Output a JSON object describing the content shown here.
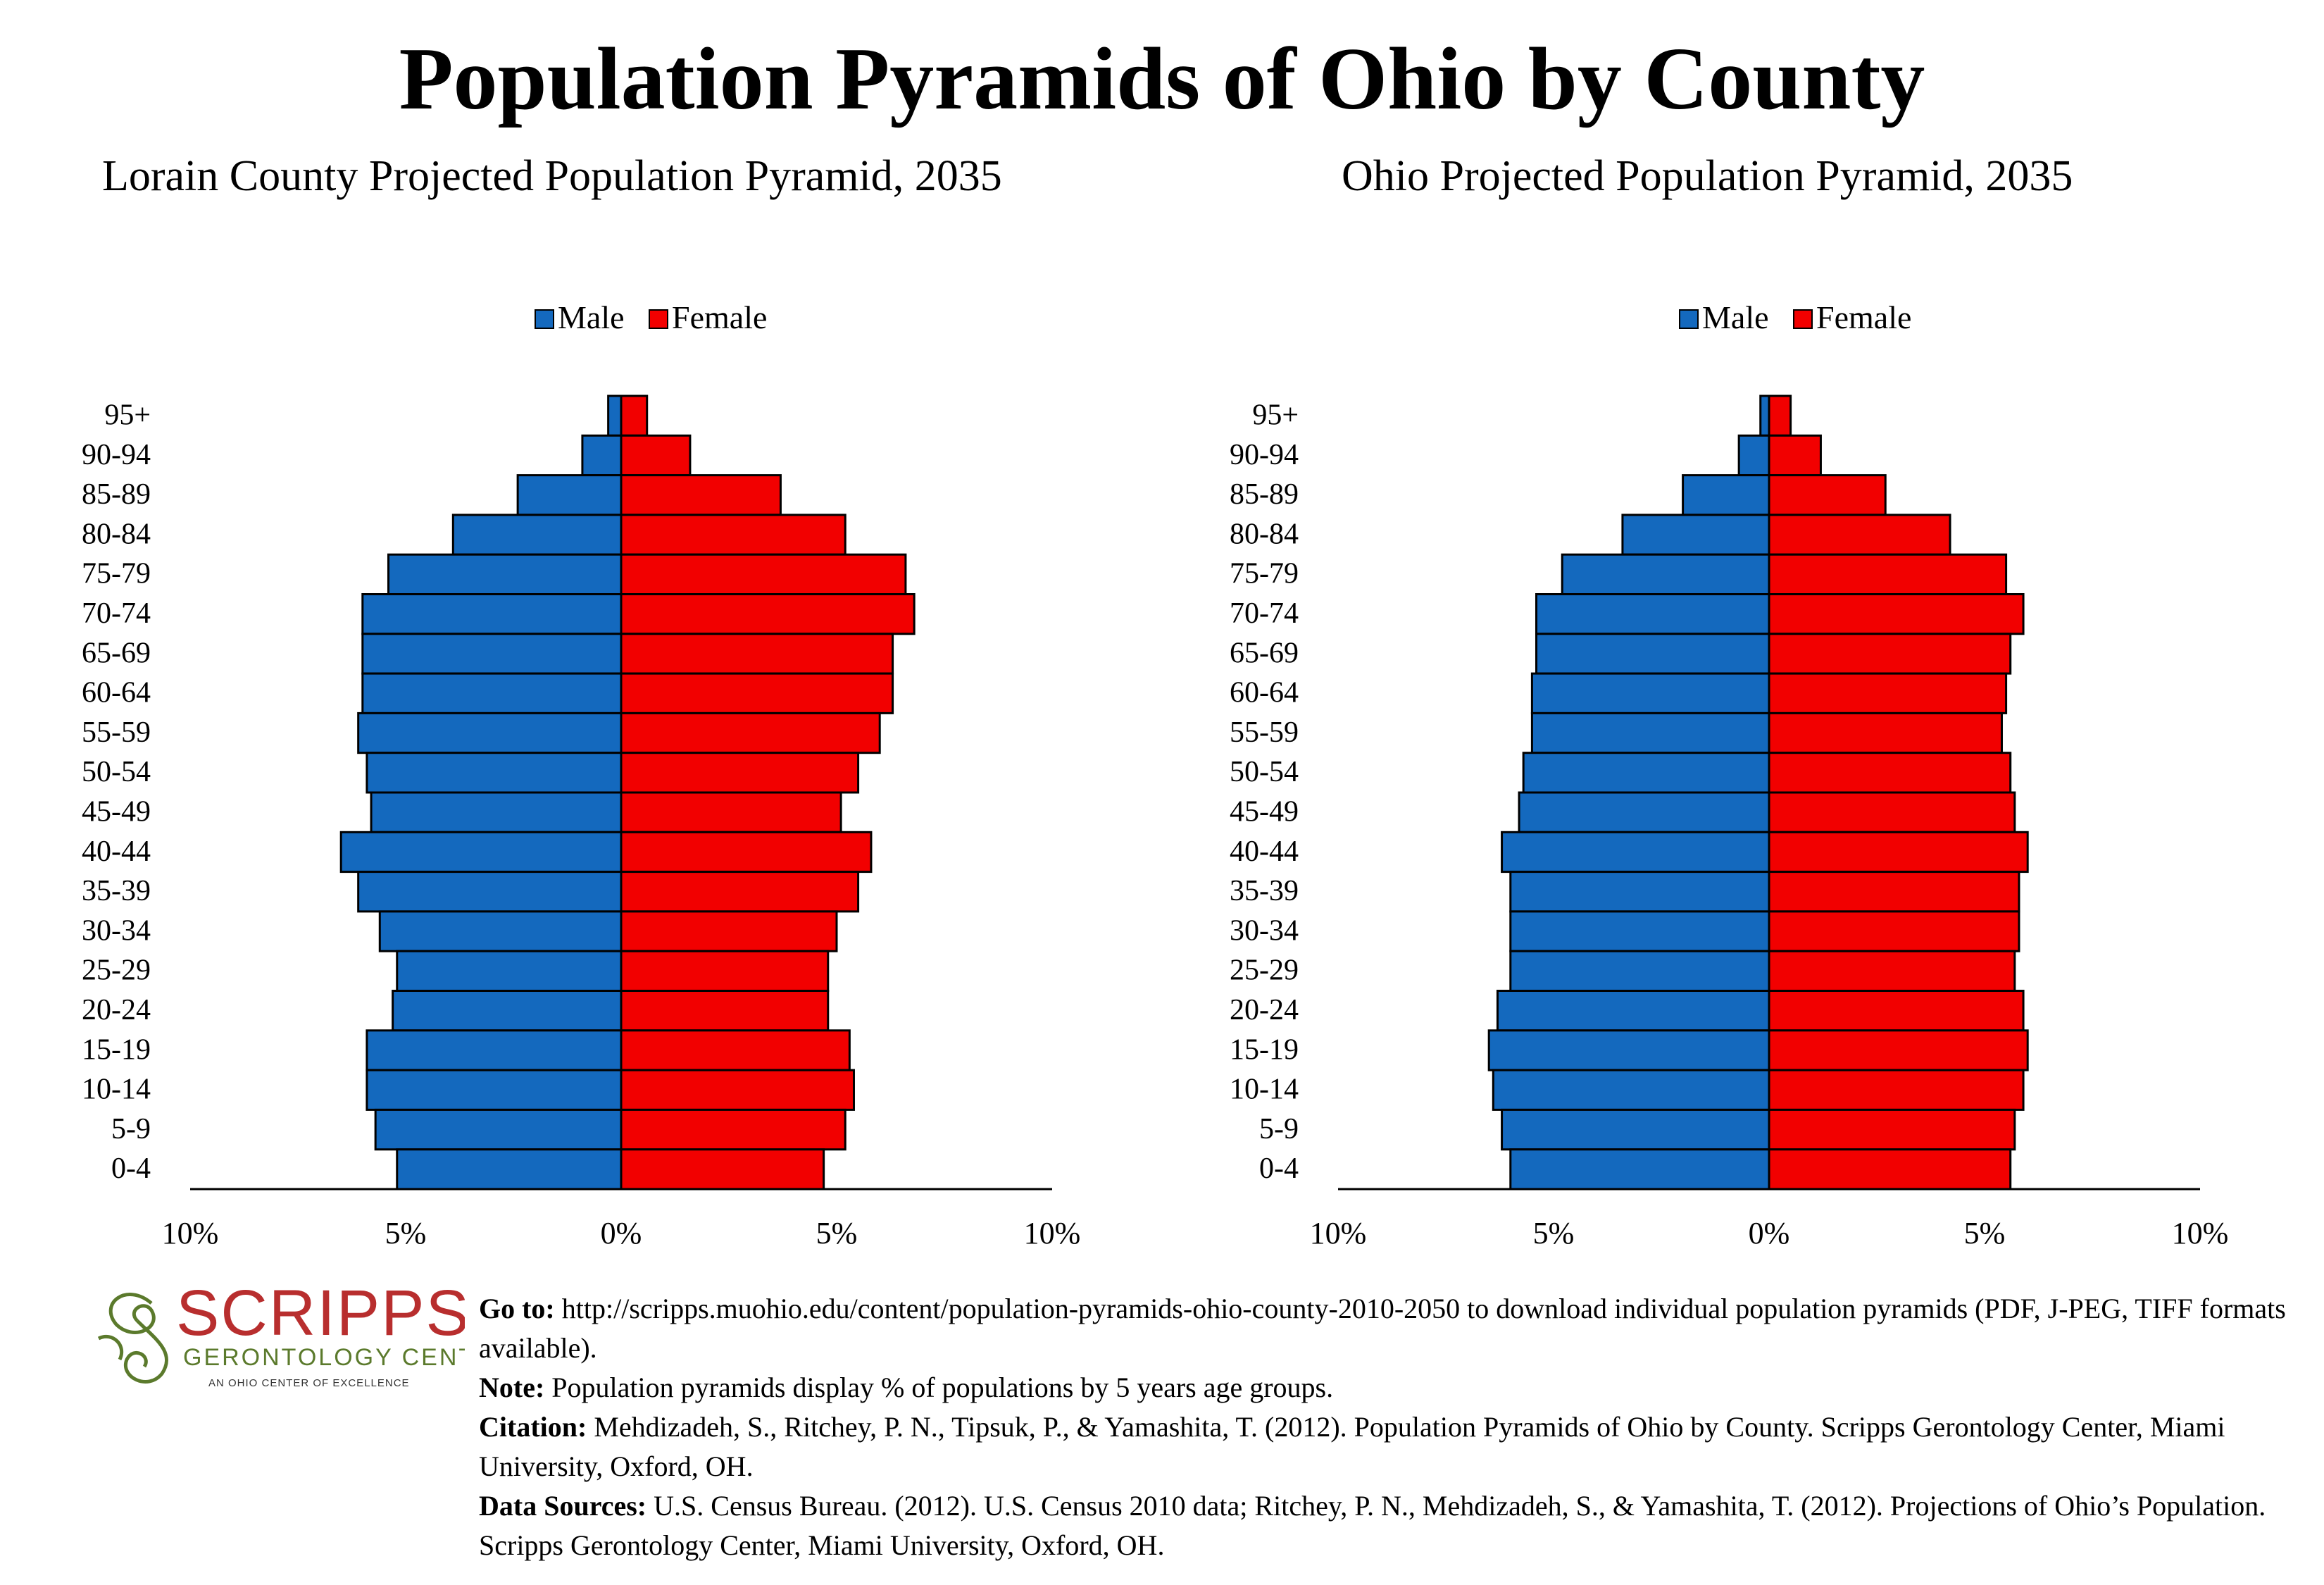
{
  "title": "Population Pyramids of Ohio by County",
  "colors": {
    "male": "#1469BE",
    "female": "#F20000",
    "logo_red": "#B82E2E",
    "logo_green": "#5B7A2C"
  },
  "chart_data": [
    {
      "type": "bar",
      "orientation": "horizontal-pyramid",
      "title": "Lorain County Projected Population Pyramid, 2035",
      "categories": [
        "95+",
        "90-94",
        "85-89",
        "80-84",
        "75-79",
        "70-74",
        "65-69",
        "60-64",
        "55-59",
        "50-54",
        "45-49",
        "40-44",
        "35-39",
        "30-34",
        "25-29",
        "20-24",
        "15-19",
        "10-14",
        "5-9",
        "0-4"
      ],
      "series": [
        {
          "name": "Male",
          "values": [
            0.3,
            0.9,
            2.4,
            3.9,
            5.4,
            6.0,
            6.0,
            6.0,
            6.1,
            5.9,
            5.8,
            6.5,
            6.1,
            5.6,
            5.2,
            5.3,
            5.9,
            5.9,
            5.7,
            5.2
          ]
        },
        {
          "name": "Female",
          "values": [
            0.6,
            1.6,
            3.7,
            5.2,
            6.6,
            6.8,
            6.3,
            6.3,
            6.0,
            5.5,
            5.1,
            5.8,
            5.5,
            5.0,
            4.8,
            4.8,
            5.3,
            5.4,
            5.2,
            4.7
          ]
        }
      ],
      "legend": [
        "Male",
        "Female"
      ],
      "legend_position": "top-center",
      "xlim": [
        -10,
        10
      ],
      "x_ticks": [
        "10%",
        "5%",
        "0%",
        "5%",
        "10%"
      ]
    },
    {
      "type": "bar",
      "orientation": "horizontal-pyramid",
      "title": "Ohio Projected Population Pyramid, 2035",
      "categories": [
        "95+",
        "90-94",
        "85-89",
        "80-84",
        "75-79",
        "70-74",
        "65-69",
        "60-64",
        "55-59",
        "50-54",
        "45-49",
        "40-44",
        "35-39",
        "30-34",
        "25-29",
        "20-24",
        "15-19",
        "10-14",
        "5-9",
        "0-4"
      ],
      "series": [
        {
          "name": "Male",
          "values": [
            0.2,
            0.7,
            2.0,
            3.4,
            4.8,
            5.4,
            5.4,
            5.5,
            5.5,
            5.7,
            5.8,
            6.2,
            6.0,
            6.0,
            6.0,
            6.3,
            6.5,
            6.4,
            6.2,
            6.0
          ]
        },
        {
          "name": "Female",
          "values": [
            0.5,
            1.2,
            2.7,
            4.2,
            5.5,
            5.9,
            5.6,
            5.5,
            5.4,
            5.6,
            5.7,
            6.0,
            5.8,
            5.8,
            5.7,
            5.9,
            6.0,
            5.9,
            5.7,
            5.6
          ]
        }
      ],
      "legend": [
        "Male",
        "Female"
      ],
      "legend_position": "top-center",
      "xlim": [
        -10,
        10
      ],
      "x_ticks": [
        "10%",
        "5%",
        "0%",
        "5%",
        "10%"
      ]
    }
  ],
  "logo": {
    "name": "SCRIPPS",
    "subtitle": "GERONTOLOGY CENTER",
    "tagline": "AN OHIO CENTER OF EXCELLENCE"
  },
  "footer": {
    "goto_label": "Go to:",
    "goto_text": "http://scripps.muohio.edu/content/population-pyramids-ohio-county-2010-2050 to download individual population pyramids (PDF, J-PEG, TIFF formats available).",
    "note_label": "Note:",
    "note_text": "Population pyramids display % of populations by 5 years age groups.",
    "citation_label": "Citation:",
    "citation_text": "Mehdizadeh, S., Ritchey, P. N., Tipsuk, P., & Yamashita, T. (2012). Population Pyramids of Ohio by County. Scripps Gerontology Center, Miami University, Oxford, OH.",
    "sources_label": "Data Sources:",
    "sources_text": "U.S. Census Bureau. (2012). U.S. Census 2010 data; Ritchey, P. N., Mehdizadeh, S., & Yamashita, T. (2012). Projections of Ohio’s Population. Scripps Gerontology Center, Miami University, Oxford, OH."
  }
}
